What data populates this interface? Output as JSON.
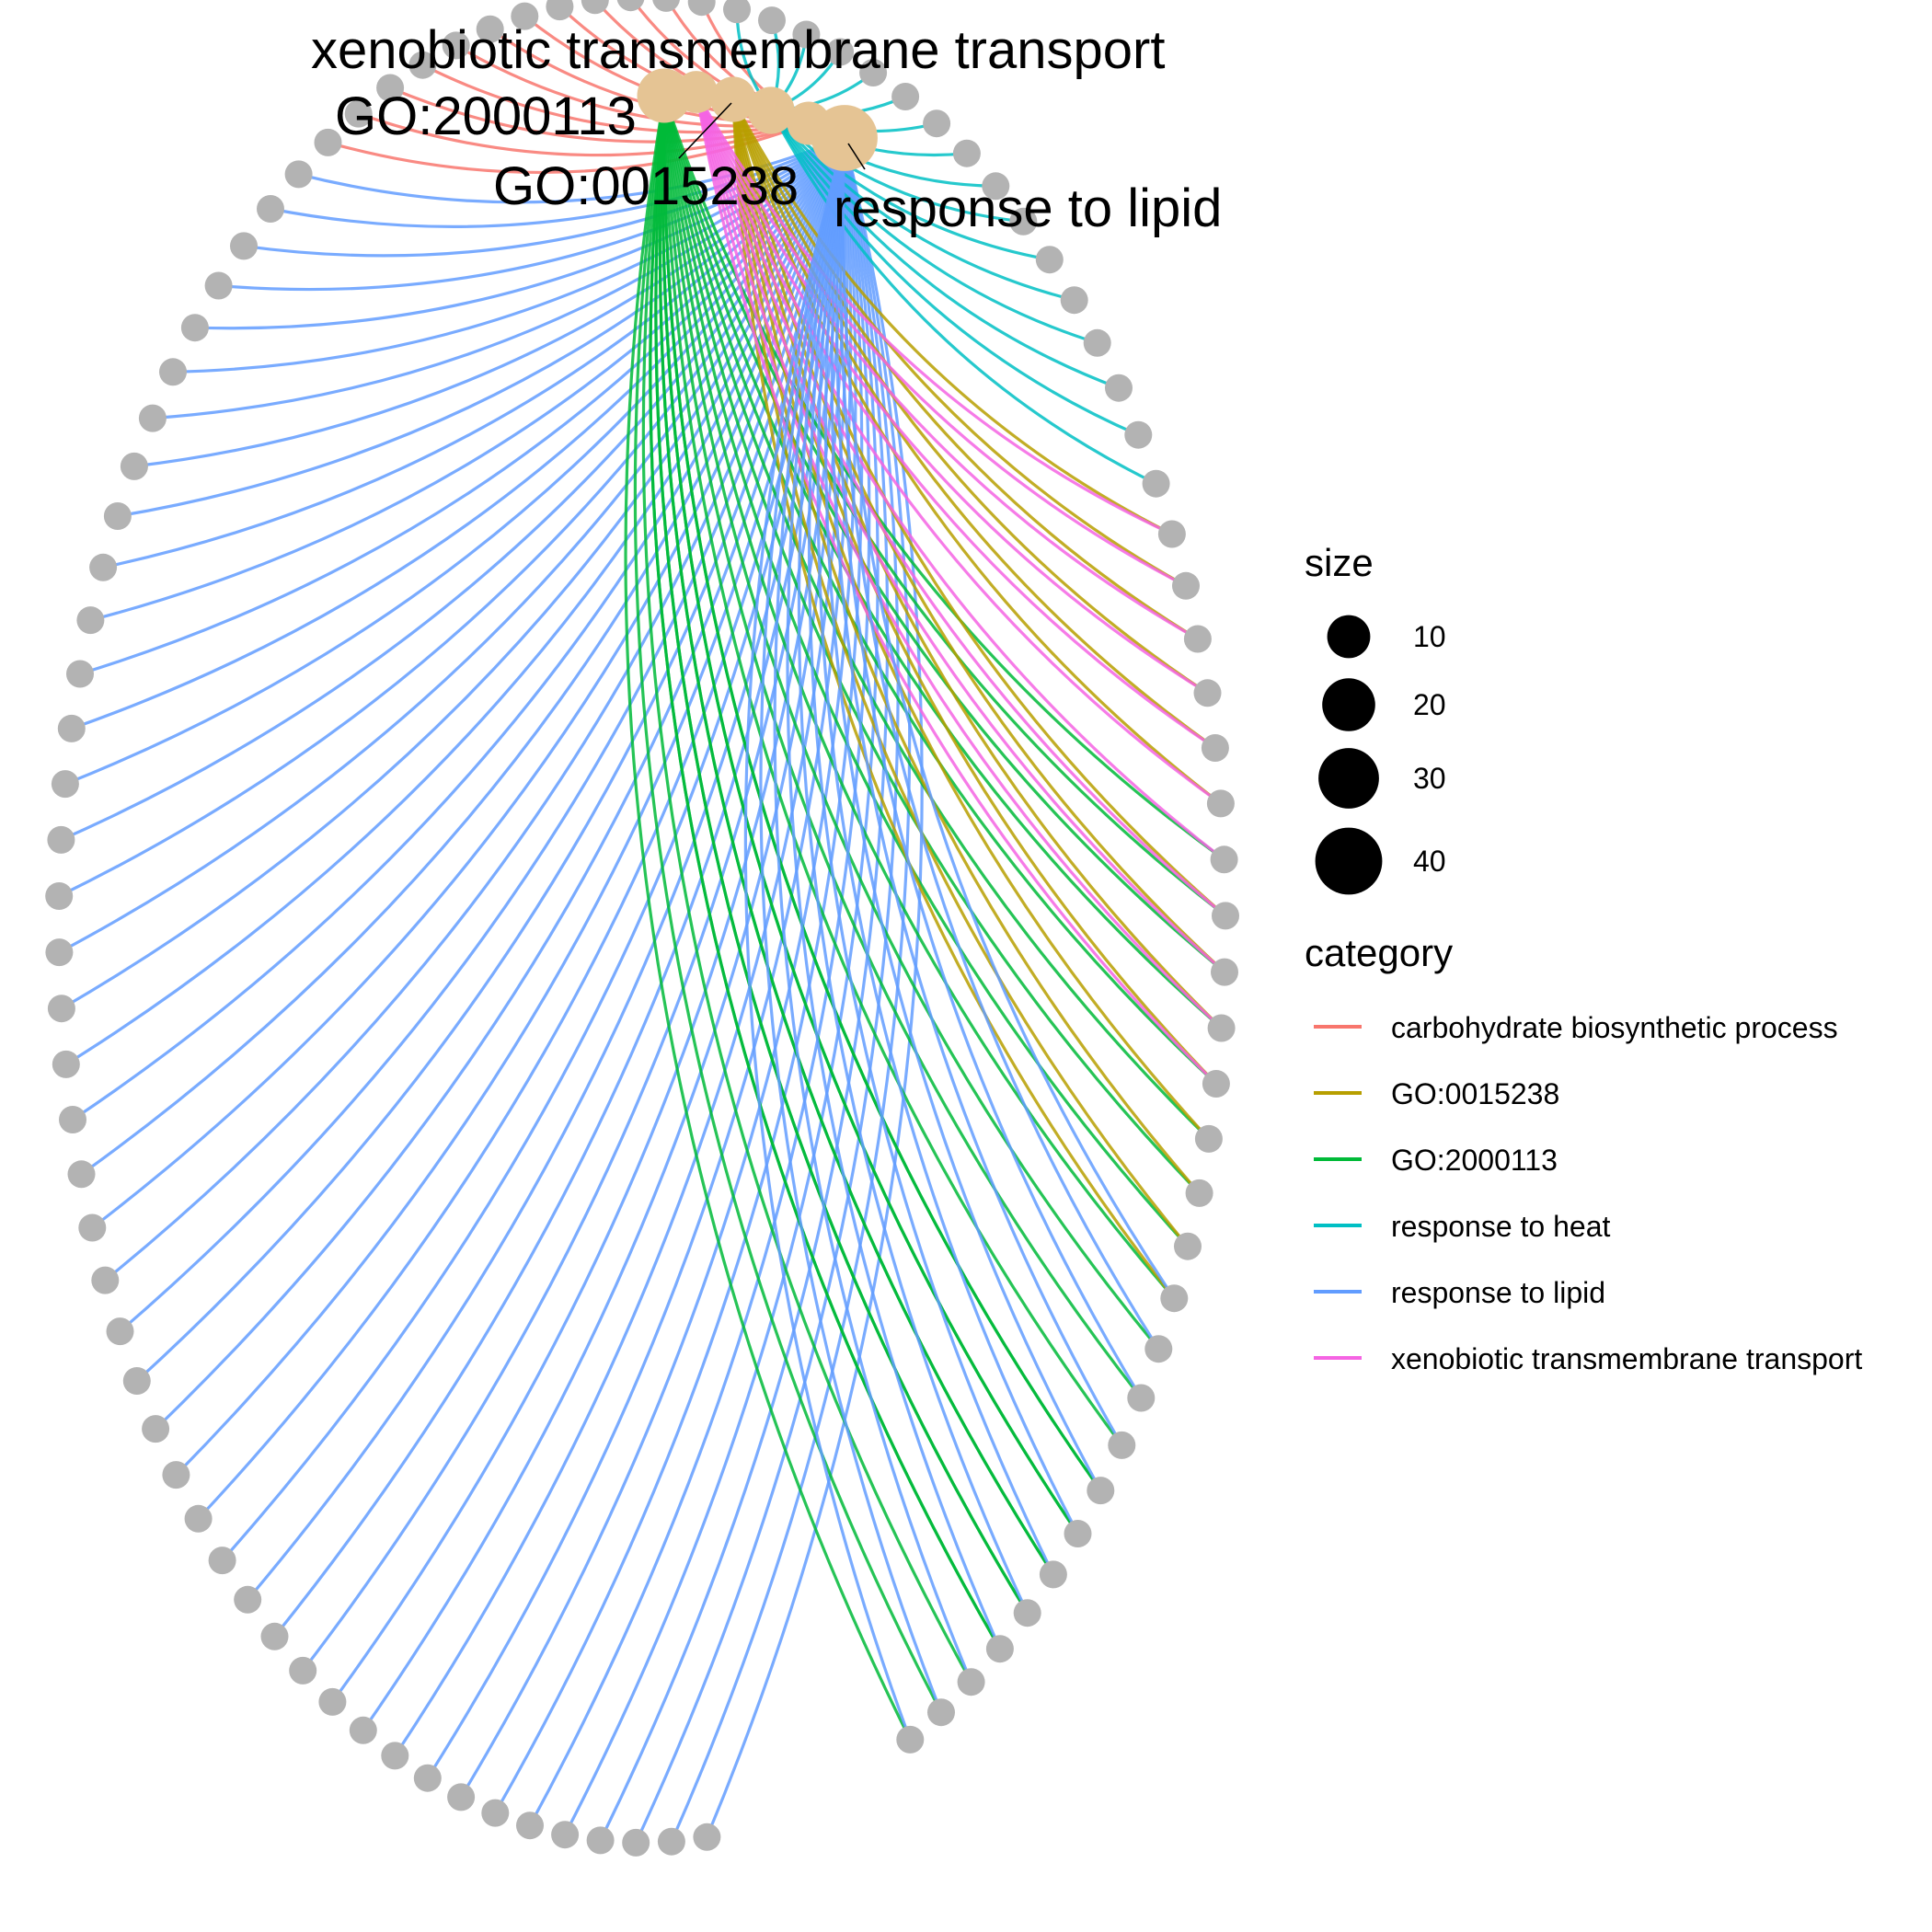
{
  "chart_data": {
    "type": "cnetplot-circular",
    "categories": [
      {
        "name": "carbohydrate biosynthetic process",
        "color": "#F8766D",
        "size": 12,
        "genes": 12
      },
      {
        "name": "GO:0015238",
        "color": "#B79F00",
        "size": 14,
        "genes": 14
      },
      {
        "name": "GO:2000113",
        "color": "#00BA38",
        "size": 25,
        "genes": 25
      },
      {
        "name": "response to heat",
        "color": "#00BFC4",
        "size": 16,
        "genes": 16
      },
      {
        "name": "response to lipid",
        "color": "#619CFF",
        "size": 44,
        "genes": 44
      },
      {
        "name": "xenobiotic transmembrane transport",
        "color": "#F564E3",
        "size": 11,
        "genes": 11
      }
    ],
    "node_labels": [
      "xenobiotic transmembrane transport",
      "GO:2000113",
      "GO:0015238",
      "response to lipid"
    ],
    "category_node_color": "#E5C494",
    "gene_node_color": "#B3B3B3",
    "gene_node_count": 98
  },
  "legend": {
    "size_title": "size",
    "size_items": [
      {
        "label": "10",
        "value": 10
      },
      {
        "label": "20",
        "value": 20
      },
      {
        "label": "30",
        "value": 30
      },
      {
        "label": "40",
        "value": 40
      }
    ],
    "category_title": "category",
    "category_items": [
      {
        "label": "carbohydrate biosynthetic process",
        "color": "#F8766D"
      },
      {
        "label": "GO:0015238",
        "color": "#B79F00"
      },
      {
        "label": "GO:2000113",
        "color": "#00BA38"
      },
      {
        "label": "response to heat",
        "color": "#00BFC4"
      },
      {
        "label": "response to lipid",
        "color": "#619CFF"
      },
      {
        "label": "xenobiotic transmembrane transport",
        "color": "#F564E3"
      }
    ]
  }
}
